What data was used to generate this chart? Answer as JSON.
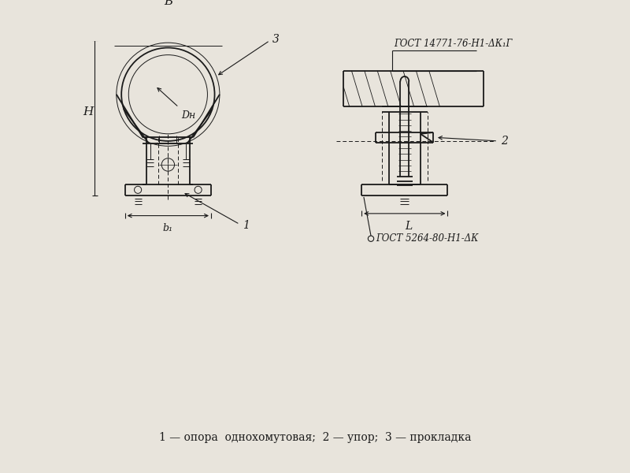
{
  "bg_color": "#e8e4dc",
  "line_color": "#1a1a1a",
  "caption": "1 — опора  однохомутовая;  2 — упор;  3 — прокладка",
  "label_B": "B",
  "label_H": "H",
  "label_b1": "b₁",
  "label_L": "L",
  "label_Dn": "Dн",
  "label_3": "3",
  "label_1": "1",
  "label_2": "2",
  "gost1": "ГОСТ 14771-76-Н1-ΔК₁Г",
  "gost2": "ГОСТ 5264-80-Н1-ΔК"
}
